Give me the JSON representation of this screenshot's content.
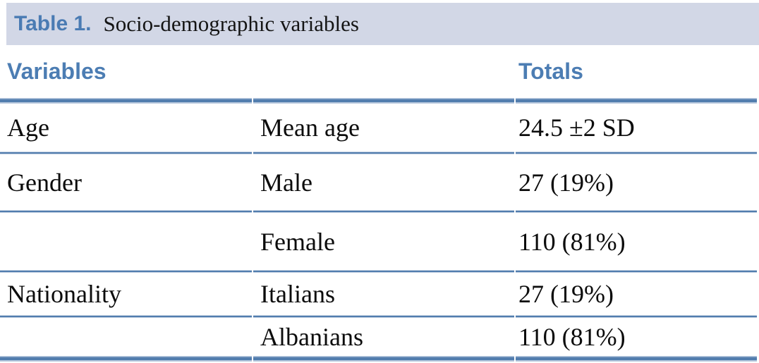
{
  "caption": {
    "label": "Table 1.",
    "text": "Socio-demographic variables"
  },
  "table": {
    "headers": [
      "Variables",
      "",
      "Totals"
    ],
    "rows": [
      [
        "Age",
        "Mean age",
        "24.5 ±2 SD"
      ],
      [
        "Gender",
        "Male",
        "27 (19%)"
      ],
      [
        "",
        "Female",
        "110 (81%)"
      ],
      [
        "Nationality",
        "Italians",
        "27 (19%)"
      ],
      [
        "",
        "Albanians",
        "110 (81%)"
      ]
    ]
  },
  "colors": {
    "caption_band_bg": "#d2d7e6",
    "accent_blue_text": "#4a7bb3",
    "rule_blue": "#517dae",
    "body_text": "#0c0c0c"
  }
}
